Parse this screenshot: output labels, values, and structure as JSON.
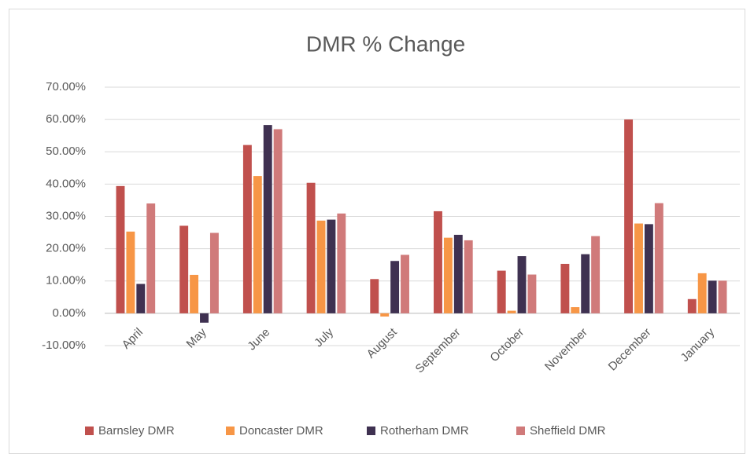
{
  "chart_data": {
    "type": "bar",
    "title": "DMR % Change",
    "categories": [
      "April",
      "May",
      "June",
      "July",
      "August",
      "September",
      "October",
      "November",
      "December",
      "January"
    ],
    "series": [
      {
        "name": "Barnsley DMR",
        "color": "#c0504d",
        "values": [
          39.4,
          27.1,
          52.1,
          40.4,
          10.6,
          31.6,
          13.2,
          15.3,
          60.0,
          4.4
        ]
      },
      {
        "name": "Doncaster DMR",
        "color": "#f79646",
        "values": [
          25.3,
          11.9,
          42.5,
          28.7,
          -1.0,
          23.4,
          0.8,
          1.9,
          27.8,
          12.4
        ]
      },
      {
        "name": "Rotherham DMR",
        "color": "#3f3151",
        "values": [
          9.1,
          -2.9,
          58.3,
          29.0,
          16.2,
          24.3,
          17.7,
          18.3,
          27.6,
          10.1
        ]
      },
      {
        "name": "Sheffield DMR",
        "color": "#d07a7a",
        "values": [
          34.0,
          24.9,
          57.0,
          30.9,
          18.1,
          22.6,
          12.0,
          23.9,
          34.1,
          10.1
        ]
      }
    ],
    "ylim": [
      -10,
      70
    ],
    "yticks": [
      {
        "value": -10,
        "label": "-10.00%"
      },
      {
        "value": 0,
        "label": "0.00%"
      },
      {
        "value": 10,
        "label": "10.00%"
      },
      {
        "value": 20,
        "label": "20.00%"
      },
      {
        "value": 30,
        "label": "30.00%"
      },
      {
        "value": 40,
        "label": "40.00%"
      },
      {
        "value": 50,
        "label": "50.00%"
      },
      {
        "value": 60,
        "label": "60.00%"
      },
      {
        "value": 70,
        "label": "70.00%"
      }
    ],
    "grid": true,
    "legend": "bottom"
  }
}
